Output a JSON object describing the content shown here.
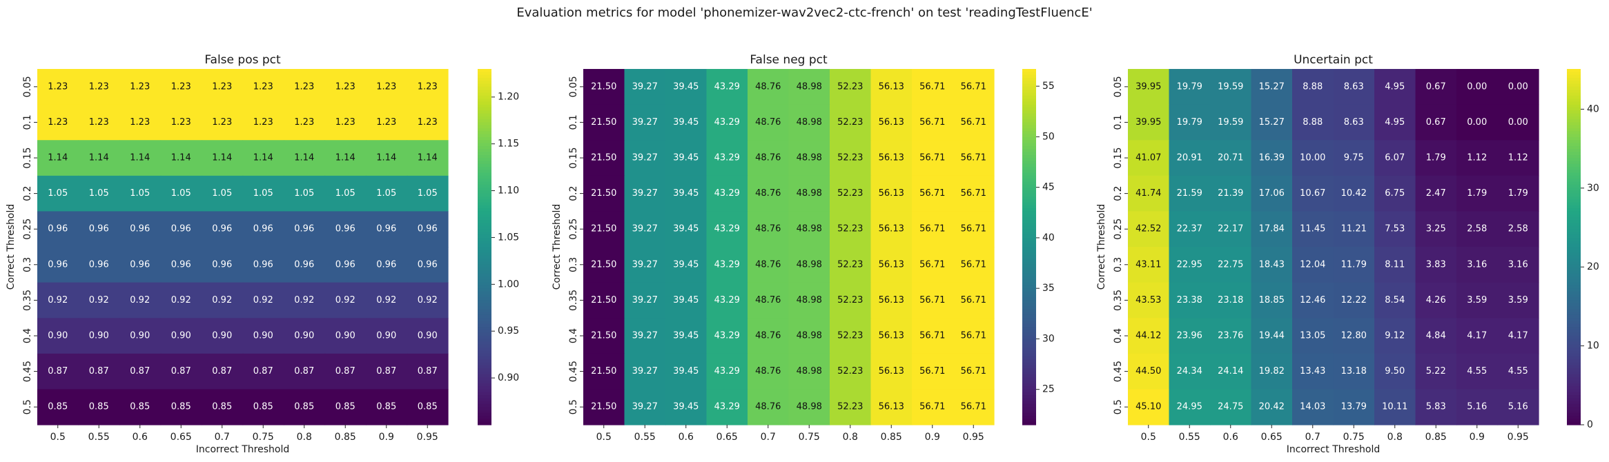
{
  "suptitle": "Evaluation metrics for model 'phonemizer-wav2vec2-ctc-french' on test 'readingTestFluencE'",
  "chart_data": [
    {
      "type": "heatmap",
      "title": "False pos pct",
      "xlabel": "Incorrect Threshold",
      "ylabel": "Correct Threshold",
      "x": [
        "0.5",
        "0.55",
        "0.6",
        "0.65",
        "0.7",
        "0.75",
        "0.8",
        "0.85",
        "0.9",
        "0.95"
      ],
      "y": [
        "0.05",
        "0.1",
        "0.15",
        "0.2",
        "0.25",
        "0.3",
        "0.35",
        "0.4",
        "0.45",
        "0.5"
      ],
      "values": [
        [
          1.23,
          1.23,
          1.23,
          1.23,
          1.23,
          1.23,
          1.23,
          1.23,
          1.23,
          1.23
        ],
        [
          1.23,
          1.23,
          1.23,
          1.23,
          1.23,
          1.23,
          1.23,
          1.23,
          1.23,
          1.23
        ],
        [
          1.14,
          1.14,
          1.14,
          1.14,
          1.14,
          1.14,
          1.14,
          1.14,
          1.14,
          1.14
        ],
        [
          1.05,
          1.05,
          1.05,
          1.05,
          1.05,
          1.05,
          1.05,
          1.05,
          1.05,
          1.05
        ],
        [
          0.96,
          0.96,
          0.96,
          0.96,
          0.96,
          0.96,
          0.96,
          0.96,
          0.96,
          0.96
        ],
        [
          0.96,
          0.96,
          0.96,
          0.96,
          0.96,
          0.96,
          0.96,
          0.96,
          0.96,
          0.96
        ],
        [
          0.92,
          0.92,
          0.92,
          0.92,
          0.92,
          0.92,
          0.92,
          0.92,
          0.92,
          0.92
        ],
        [
          0.9,
          0.9,
          0.9,
          0.9,
          0.9,
          0.9,
          0.9,
          0.9,
          0.9,
          0.9
        ],
        [
          0.87,
          0.87,
          0.87,
          0.87,
          0.87,
          0.87,
          0.87,
          0.87,
          0.87,
          0.87
        ],
        [
          0.85,
          0.85,
          0.85,
          0.85,
          0.85,
          0.85,
          0.85,
          0.85,
          0.85,
          0.85
        ]
      ],
      "colorscale": "viridis",
      "vmin": 0.85,
      "vmax": 1.23,
      "colorbar_ticks": [
        0.9,
        0.95,
        1.0,
        1.05,
        1.1,
        1.15,
        1.2
      ],
      "colorbar_tick_labels": [
        "0.90",
        "0.95",
        "1.00",
        "1.05",
        "1.10",
        "1.15",
        "1.20"
      ]
    },
    {
      "type": "heatmap",
      "title": "False neg pct",
      "xlabel": "",
      "ylabel": "Correct Threshold",
      "x": [
        "0.5",
        "0.55",
        "0.6",
        "0.65",
        "0.7",
        "0.75",
        "0.8",
        "0.85",
        "0.9",
        "0.95"
      ],
      "y": [
        "0.05",
        "0.1",
        "0.15",
        "0.2",
        "0.25",
        "0.3",
        "0.35",
        "0.4",
        "0.45",
        "0.5"
      ],
      "values": [
        [
          21.5,
          39.27,
          39.45,
          43.29,
          48.76,
          48.98,
          52.23,
          56.13,
          56.71,
          56.71
        ],
        [
          21.5,
          39.27,
          39.45,
          43.29,
          48.76,
          48.98,
          52.23,
          56.13,
          56.71,
          56.71
        ],
        [
          21.5,
          39.27,
          39.45,
          43.29,
          48.76,
          48.98,
          52.23,
          56.13,
          56.71,
          56.71
        ],
        [
          21.5,
          39.27,
          39.45,
          43.29,
          48.76,
          48.98,
          52.23,
          56.13,
          56.71,
          56.71
        ],
        [
          21.5,
          39.27,
          39.45,
          43.29,
          48.76,
          48.98,
          52.23,
          56.13,
          56.71,
          56.71
        ],
        [
          21.5,
          39.27,
          39.45,
          43.29,
          48.76,
          48.98,
          52.23,
          56.13,
          56.71,
          56.71
        ],
        [
          21.5,
          39.27,
          39.45,
          43.29,
          48.76,
          48.98,
          52.23,
          56.13,
          56.71,
          56.71
        ],
        [
          21.5,
          39.27,
          39.45,
          43.29,
          48.76,
          48.98,
          52.23,
          56.13,
          56.71,
          56.71
        ],
        [
          21.5,
          39.27,
          39.45,
          43.29,
          48.76,
          48.98,
          52.23,
          56.13,
          56.71,
          56.71
        ],
        [
          21.5,
          39.27,
          39.45,
          43.29,
          48.76,
          48.98,
          52.23,
          56.13,
          56.71,
          56.71
        ]
      ],
      "colorscale": "viridis",
      "vmin": 21.5,
      "vmax": 56.71,
      "colorbar_ticks": [
        25,
        30,
        35,
        40,
        45,
        50,
        55
      ],
      "colorbar_tick_labels": [
        "25",
        "30",
        "35",
        "40",
        "45",
        "50",
        "55"
      ]
    },
    {
      "type": "heatmap",
      "title": "Uncertain pct",
      "xlabel": "Incorrect Threshold",
      "ylabel": "Correct Threshold",
      "x": [
        "0.5",
        "0.55",
        "0.6",
        "0.65",
        "0.7",
        "0.75",
        "0.8",
        "0.85",
        "0.9",
        "0.95"
      ],
      "y": [
        "0.05",
        "0.1",
        "0.15",
        "0.2",
        "0.25",
        "0.3",
        "0.35",
        "0.4",
        "0.45",
        "0.5"
      ],
      "values": [
        [
          39.95,
          19.79,
          19.59,
          15.27,
          8.88,
          8.63,
          4.95,
          0.67,
          0.0,
          0.0
        ],
        [
          39.95,
          19.79,
          19.59,
          15.27,
          8.88,
          8.63,
          4.95,
          0.67,
          0.0,
          0.0
        ],
        [
          41.07,
          20.91,
          20.71,
          16.39,
          10.0,
          9.75,
          6.07,
          1.79,
          1.12,
          1.12
        ],
        [
          41.74,
          21.59,
          21.39,
          17.06,
          10.67,
          10.42,
          6.75,
          2.47,
          1.79,
          1.79
        ],
        [
          42.52,
          22.37,
          22.17,
          17.84,
          11.45,
          11.21,
          7.53,
          3.25,
          2.58,
          2.58
        ],
        [
          43.11,
          22.95,
          22.75,
          18.43,
          12.04,
          11.79,
          8.11,
          3.83,
          3.16,
          3.16
        ],
        [
          43.53,
          23.38,
          23.18,
          18.85,
          12.46,
          12.22,
          8.54,
          4.26,
          3.59,
          3.59
        ],
        [
          44.12,
          23.96,
          23.76,
          19.44,
          13.05,
          12.8,
          9.12,
          4.84,
          4.17,
          4.17
        ],
        [
          44.5,
          24.34,
          24.14,
          19.82,
          13.43,
          13.18,
          9.5,
          5.22,
          4.55,
          4.55
        ],
        [
          45.1,
          24.95,
          24.75,
          20.42,
          14.03,
          13.79,
          10.11,
          5.83,
          5.16,
          5.16
        ]
      ],
      "colorscale": "viridis",
      "vmin": 0,
      "vmax": 45.1,
      "colorbar_ticks": [
        0,
        10,
        20,
        30,
        40
      ],
      "colorbar_tick_labels": [
        "0",
        "10",
        "20",
        "30",
        "40"
      ]
    }
  ]
}
